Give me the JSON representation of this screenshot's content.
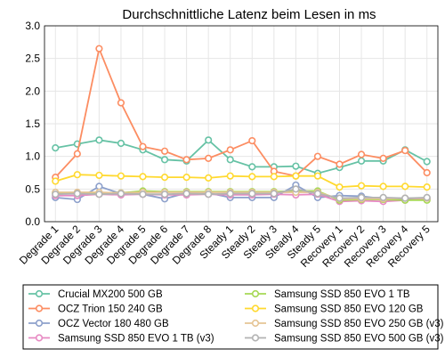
{
  "chart_data": {
    "type": "line",
    "title": "Durchschnittliche Latenz beim Lesen in ms",
    "xlabel": "",
    "ylabel": "",
    "ylim": [
      0,
      3.0
    ],
    "yticks": [
      "0.0",
      "0.5",
      "1.0",
      "1.5",
      "2.0",
      "2.5",
      "3.0"
    ],
    "grid": true,
    "legend_position": "bottom",
    "categories": [
      "Degrade 1",
      "Degrade 2",
      "Degrade 3",
      "Degrade 4",
      "Degrade 5",
      "Degrade 6",
      "Degrade 7",
      "Degrade 8",
      "Steady 1",
      "Steady 2",
      "Steady 3",
      "Steady 4",
      "Steady 5",
      "Recovery 1",
      "Recovery 2",
      "Recovery 3",
      "Recovery 4",
      "Recovery 5"
    ],
    "series": [
      {
        "name": "Crucial MX200 500 GB",
        "color": "#66c2a5",
        "values": [
          1.13,
          1.19,
          1.25,
          1.2,
          1.1,
          0.95,
          0.93,
          1.25,
          0.95,
          0.84,
          0.84,
          0.85,
          0.74,
          0.83,
          0.93,
          0.93,
          1.1,
          0.92
        ]
      },
      {
        "name": "OCZ Trion 150 240 GB",
        "color": "#fc8d62",
        "values": [
          0.68,
          1.04,
          2.65,
          1.82,
          1.15,
          1.08,
          0.95,
          0.97,
          1.1,
          1.24,
          0.77,
          0.7,
          1.0,
          0.88,
          1.03,
          0.97,
          1.09,
          0.75
        ]
      },
      {
        "name": "OCZ Vector 180 480 GB",
        "color": "#8da0cb",
        "values": [
          0.37,
          0.34,
          0.54,
          0.43,
          0.42,
          0.35,
          0.44,
          0.44,
          0.37,
          0.37,
          0.37,
          0.56,
          0.37,
          0.4,
          0.39,
          0.35,
          0.35,
          0.36
        ]
      },
      {
        "name": "Samsung SSD 850 EVO 1 TB (v3)",
        "color": "#e78ac3",
        "values": [
          0.4,
          0.4,
          0.42,
          0.41,
          0.42,
          0.41,
          0.41,
          0.42,
          0.41,
          0.41,
          0.42,
          0.41,
          0.42,
          0.31,
          0.32,
          0.31,
          0.33,
          0.34
        ]
      },
      {
        "name": "Samsung SSD 850 EVO 1 TB",
        "color": "#a6d854",
        "values": [
          0.44,
          0.44,
          0.44,
          0.44,
          0.47,
          0.46,
          0.46,
          0.46,
          0.46,
          0.46,
          0.46,
          0.47,
          0.47,
          0.33,
          0.34,
          0.34,
          0.33,
          0.33
        ]
      },
      {
        "name": "Samsung SSD 850 EVO 120 GB",
        "color": "#ffd92f",
        "values": [
          0.62,
          0.72,
          0.71,
          0.7,
          0.69,
          0.68,
          0.68,
          0.67,
          0.7,
          0.69,
          0.69,
          0.7,
          0.7,
          0.53,
          0.55,
          0.54,
          0.54,
          0.53
        ]
      },
      {
        "name": "Samsung SSD 850 EVO 250 GB (v3)",
        "color": "#e5c494",
        "values": [
          0.45,
          0.45,
          0.45,
          0.44,
          0.45,
          0.45,
          0.45,
          0.45,
          0.45,
          0.45,
          0.45,
          0.45,
          0.45,
          0.35,
          0.35,
          0.35,
          0.36,
          0.36
        ]
      },
      {
        "name": "Samsung SSD 850 EVO 500 GB (v3)",
        "color": "#b3b3b3",
        "values": [
          0.42,
          0.43,
          0.42,
          0.43,
          0.42,
          0.42,
          0.43,
          0.42,
          0.43,
          0.43,
          0.43,
          0.5,
          0.43,
          0.36,
          0.37,
          0.37,
          0.36,
          0.37
        ]
      }
    ]
  }
}
